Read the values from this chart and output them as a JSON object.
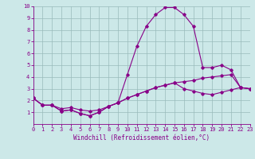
{
  "xlabel": "Windchill (Refroidissement éolien,°C)",
  "xlim": [
    0,
    23
  ],
  "ylim": [
    0,
    10
  ],
  "xticks": [
    0,
    1,
    2,
    3,
    4,
    5,
    6,
    7,
    8,
    9,
    10,
    11,
    12,
    13,
    14,
    15,
    16,
    17,
    18,
    19,
    20,
    21,
    22,
    23
  ],
  "yticks": [
    1,
    2,
    3,
    4,
    5,
    6,
    7,
    8,
    9,
    10
  ],
  "bg_color": "#cce8e8",
  "line_color": "#880088",
  "grid_color": "#99bbbb",
  "curve1_x": [
    0,
    1,
    2,
    3,
    4,
    5,
    6,
    7,
    8,
    9,
    10,
    11,
    12,
    13,
    14,
    15,
    16,
    17,
    18,
    19,
    20,
    21,
    22,
    23
  ],
  "curve1_y": [
    2.2,
    1.6,
    1.6,
    1.1,
    1.2,
    0.9,
    0.7,
    1.0,
    1.5,
    1.8,
    4.2,
    6.6,
    8.3,
    9.3,
    9.9,
    9.9,
    9.3,
    8.3,
    4.8,
    4.8,
    5.0,
    4.6,
    3.1,
    3.0
  ],
  "curve2_x": [
    0,
    1,
    2,
    3,
    4,
    5,
    6,
    7,
    8,
    9,
    10,
    11,
    12,
    13,
    14,
    15,
    16,
    17,
    18,
    19,
    20,
    21,
    22,
    23
  ],
  "curve2_y": [
    2.2,
    1.6,
    1.6,
    1.3,
    1.4,
    1.2,
    1.1,
    1.2,
    1.5,
    1.8,
    2.2,
    2.5,
    2.8,
    3.1,
    3.3,
    3.5,
    3.6,
    3.7,
    3.9,
    4.0,
    4.1,
    4.2,
    3.1,
    3.0
  ],
  "curve3_x": [
    0,
    1,
    2,
    3,
    4,
    5,
    6,
    7,
    8,
    9,
    10,
    11,
    12,
    13,
    14,
    15,
    16,
    17,
    18,
    19,
    20,
    21,
    22,
    23
  ],
  "curve3_y": [
    2.2,
    1.6,
    1.6,
    1.1,
    1.2,
    0.9,
    0.7,
    1.0,
    1.5,
    1.8,
    2.2,
    2.5,
    2.8,
    3.1,
    3.3,
    3.5,
    3.0,
    2.8,
    2.6,
    2.5,
    2.7,
    2.9,
    3.1,
    3.0
  ],
  "tick_fontsize": 5,
  "xlabel_fontsize": 5.5
}
